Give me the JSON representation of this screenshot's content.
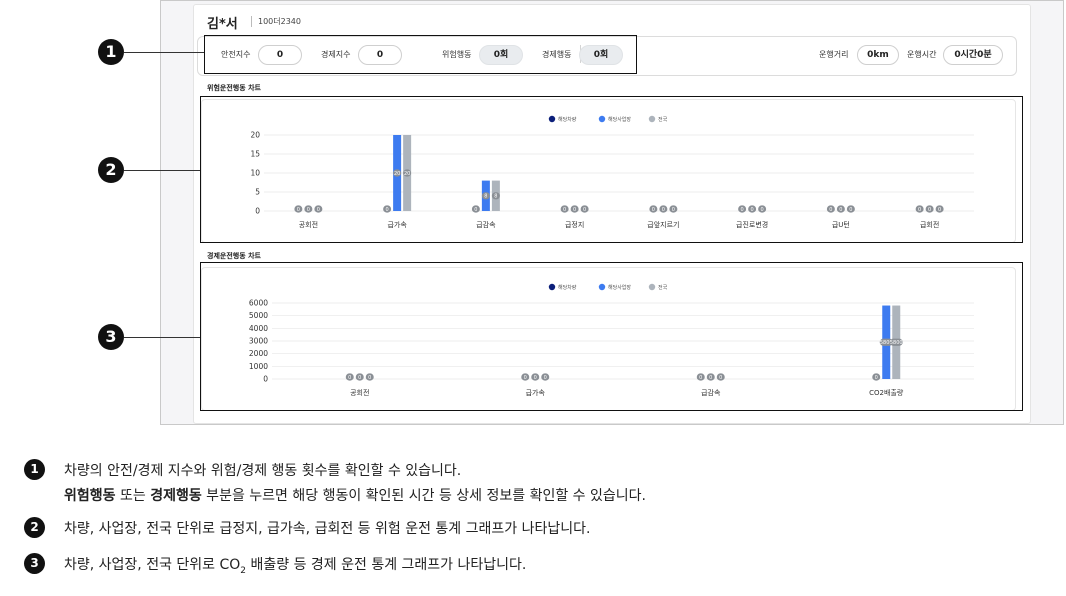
{
  "header": {
    "driver_name": "김*서",
    "plate": "100더2340"
  },
  "stats": {
    "safety_label": "안전지수",
    "safety_value": "0",
    "economy_label": "경제지수",
    "economy_value": "0",
    "risk_label": "위험행동",
    "risk_value": "0회",
    "eco_label": "경제행동",
    "eco_value": "0회",
    "distance_label": "운행거리",
    "distance_value": "0km",
    "time_label": "운행시간",
    "time_value": "0시간0분"
  },
  "risk_section": {
    "title": "위험운전행동 차트"
  },
  "eco_section": {
    "title": "경제운전행동 차트"
  },
  "colors": {
    "vehicle": "#0c1f7a",
    "site": "#3d7bf0",
    "national": "#adb4bc",
    "callout": "#111111"
  },
  "chart_data": [
    {
      "type": "bar",
      "legend": [
        "해당차량",
        "해당사업장",
        "전국"
      ],
      "legend_position": "top",
      "categories": [
        "공회전",
        "급가속",
        "급감속",
        "급정지",
        "급앞지르기",
        "급진로변경",
        "급U턴",
        "급회전"
      ],
      "series": [
        {
          "name": "해당차량",
          "values": [
            0,
            0,
            0,
            0,
            0,
            0,
            0,
            0
          ]
        },
        {
          "name": "해당사업장",
          "values": [
            0,
            20,
            8,
            0,
            0,
            0,
            0,
            0
          ]
        },
        {
          "name": "전국",
          "values": [
            0,
            20,
            8,
            0,
            0,
            0,
            0,
            0
          ]
        }
      ],
      "data_labels": [
        [
          "0",
          "0",
          "0"
        ],
        [
          "0",
          "20",
          "20"
        ],
        [
          "0",
          "8",
          "8"
        ],
        [
          "0",
          "0",
          "0"
        ],
        [
          "0",
          "0",
          "0"
        ],
        [
          "0",
          "0",
          "0"
        ],
        [
          "0",
          "0",
          "0"
        ],
        [
          "0",
          "0",
          "0"
        ]
      ],
      "yticks": [
        0,
        5,
        10,
        15,
        20
      ],
      "ylim": [
        0,
        20
      ],
      "grid": true
    },
    {
      "type": "bar",
      "legend": [
        "해당차량",
        "해당사업장",
        "전국"
      ],
      "legend_position": "top",
      "categories": [
        "공회전",
        "급가속",
        "급감속",
        "CO2배출량"
      ],
      "series": [
        {
          "name": "해당차량",
          "values": [
            0,
            0,
            0,
            0
          ]
        },
        {
          "name": "해당사업장",
          "values": [
            0,
            0,
            0,
            5800
          ]
        },
        {
          "name": "전국",
          "values": [
            0,
            0,
            0,
            5800
          ]
        }
      ],
      "data_labels": [
        [
          "0",
          "0",
          "0"
        ],
        [
          "0",
          "0",
          "0"
        ],
        [
          "0",
          "0",
          "0"
        ],
        [
          "0",
          "5800",
          "5800"
        ]
      ],
      "yticks": [
        0,
        1000,
        2000,
        3000,
        4000,
        5000,
        6000
      ],
      "ylim": [
        0,
        6000
      ],
      "grid": true
    }
  ],
  "callouts": [
    "1",
    "2",
    "3"
  ],
  "notes": [
    {
      "num": "1",
      "line1": "차량의 안전/경제 지수와 위험/경제 행동 횟수를 확인할 수 있습니다.",
      "line2_bold1": "위험행동",
      "line2_mid": " 또는 ",
      "line2_bold2": "경제행동",
      "line2_rest": " 부분을 누르면 해당 행동이 확인된 시간 등 상세 정보를 확인할 수 있습니다."
    },
    {
      "num": "2",
      "text": "차량, 사업장, 전국 단위로 급정지, 급가속, 급회전 등 위험 운전 통계 그래프가 나타납니다."
    },
    {
      "num": "3",
      "text_pre": "차량, 사업장, 전국 단위로 CO",
      "text_sub": "2",
      "text_post": " 배출량 등 경제 운전 통계 그래프가 나타납니다."
    }
  ]
}
